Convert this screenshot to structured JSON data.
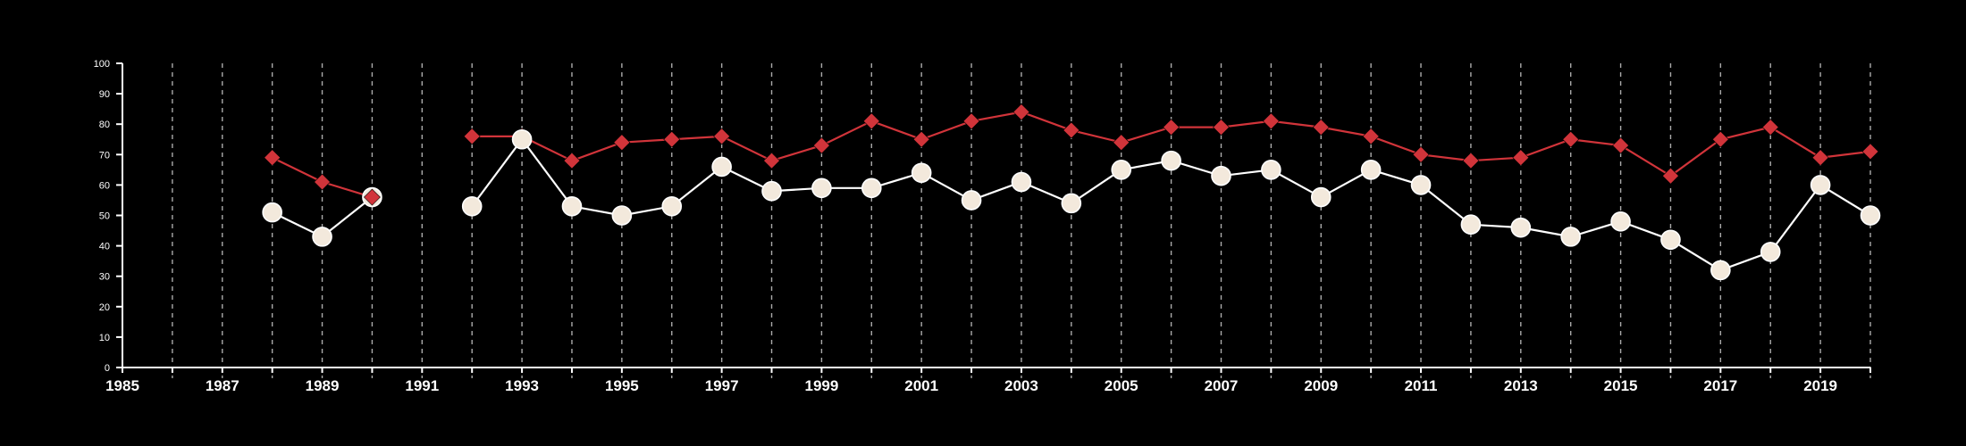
{
  "colors": {
    "background": "#000000",
    "axis": "#ffffff",
    "grid": "#aaaaaa",
    "series_red": "#d1343a",
    "series_white_fill": "#f3e9dc",
    "series_white_line": "#ffffff"
  },
  "chart_data": {
    "type": "line",
    "title": "",
    "xlabel": "",
    "ylabel": "",
    "xlim": [
      1985,
      2020
    ],
    "ylim": [
      0,
      100
    ],
    "x_ticks": [
      1985,
      1987,
      1989,
      1991,
      1993,
      1995,
      1997,
      1999,
      2001,
      2003,
      2005,
      2007,
      2009,
      2011,
      2013,
      2015,
      2017,
      2019
    ],
    "y_ticks": [
      0,
      10,
      20,
      30,
      40,
      50,
      60,
      70,
      80,
      90,
      100
    ],
    "grid": "vertical dashed lines at every year",
    "legend": "none",
    "x": [
      1985,
      1986,
      1987,
      1988,
      1989,
      1990,
      1991,
      1992,
      1993,
      1994,
      1995,
      1996,
      1997,
      1998,
      1999,
      2000,
      2001,
      2002,
      2003,
      2004,
      2005,
      2006,
      2007,
      2008,
      2009,
      2010,
      2011,
      2012,
      2013,
      2014,
      2015,
      2016,
      2017,
      2018,
      2019,
      2020
    ],
    "series": [
      {
        "marker": "diamond",
        "color": "red",
        "values": [
          null,
          null,
          null,
          69,
          61,
          56,
          null,
          76,
          76,
          68,
          74,
          75,
          76,
          68,
          73,
          81,
          75,
          81,
          84,
          78,
          74,
          79,
          79,
          81,
          79,
          76,
          70,
          68,
          69,
          75,
          73,
          63,
          75,
          79,
          69,
          71
        ]
      },
      {
        "marker": "circle",
        "color": "cream",
        "values": [
          null,
          null,
          null,
          51,
          43,
          56,
          null,
          53,
          75,
          53,
          50,
          53,
          66,
          58,
          59,
          59,
          64,
          55,
          61,
          54,
          65,
          68,
          63,
          65,
          56,
          65,
          60,
          47,
          46,
          43,
          48,
          42,
          32,
          38,
          60,
          50
        ]
      }
    ]
  }
}
